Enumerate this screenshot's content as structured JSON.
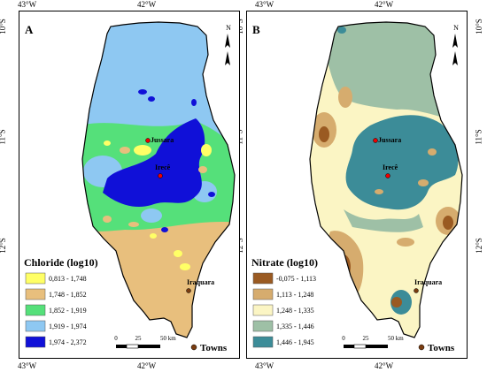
{
  "graticule": {
    "lon": [
      "43°W",
      "42°W",
      "43°W",
      "42°W"
    ],
    "lat": [
      "10°S",
      "11°S",
      "12°S"
    ]
  },
  "panel_a": {
    "letter": "A",
    "north_label": "N",
    "legend_title": "Chloride (log10)",
    "classes": [
      {
        "label": "0,813 - 1,748",
        "color": "#ffff66"
      },
      {
        "label": "1,748 - 1,852",
        "color": "#e8bf7d"
      },
      {
        "label": "1,852 - 1,919",
        "color": "#55e07a"
      },
      {
        "label": "1,919 - 1,974",
        "color": "#8ec8f2"
      },
      {
        "label": "1,974 - 2,372",
        "color": "#1010d8"
      }
    ],
    "towns": [
      "Jussara",
      "Irecê",
      "Iraquara"
    ],
    "scale": {
      "labels": [
        "0",
        "25",
        "50 km"
      ]
    },
    "towns_legend": "Towns"
  },
  "panel_b": {
    "letter": "B",
    "north_label": "N",
    "legend_title": "Nitrate (log10)",
    "classes": [
      {
        "label": "-0,075 - 1,113",
        "color": "#9a5a22"
      },
      {
        "label": "1,113 - 1,248",
        "color": "#d6ac6e"
      },
      {
        "label": "1,248 - 1,335",
        "color": "#fbf5c4"
      },
      {
        "label": "1,335 - 1,446",
        "color": "#9ec0a6"
      },
      {
        "label": "1,446 - 1,945",
        "color": "#3c8c98"
      }
    ],
    "towns": [
      "Jussara",
      "Irecê",
      "Iraquara"
    ],
    "scale": {
      "labels": [
        "0",
        "25",
        "50 km"
      ]
    },
    "towns_legend": "Towns"
  }
}
